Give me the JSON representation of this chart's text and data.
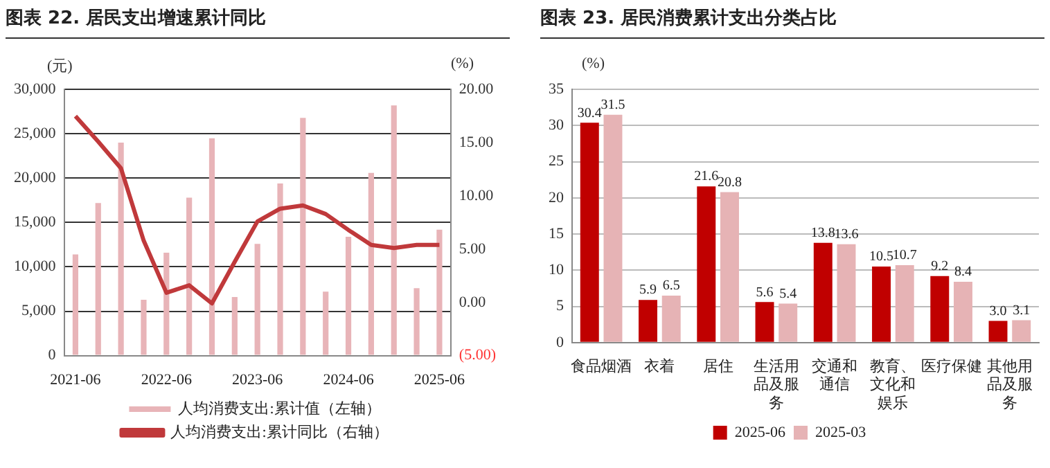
{
  "chart_data": [
    {
      "type": "bar",
      "title": "图表 22. 居民支出增速累计同比",
      "ylabel": "(元)",
      "y2label": "(%)",
      "categories": [
        "2021-06",
        null,
        null,
        null,
        "2022-06",
        null,
        null,
        null,
        "2023-06",
        null,
        null,
        null,
        "2024-06",
        null,
        null,
        null,
        "2025-06"
      ],
      "series": [
        {
          "name": "人均消费支出:累计值（左轴）",
          "color": "#e8b4b8",
          "values": [
            11400,
            17200,
            24000,
            6300,
            11600,
            17800,
            24500,
            6600,
            12600,
            19400,
            26800,
            7200,
            13400,
            20600,
            28200,
            7600,
            14200
          ]
        },
        {
          "name": "人均消费支出:累计同比（右轴）",
          "type": "line",
          "axis": "y2",
          "color": "#c0393b",
          "values": [
            17.5,
            15.1,
            12.6,
            5.8,
            0.9,
            1.6,
            -0.1,
            3.8,
            7.6,
            8.8,
            9.1,
            8.3,
            6.8,
            5.4,
            5.1,
            5.4,
            5.4
          ]
        }
      ],
      "ylim": [
        0,
        30000
      ],
      "yticks": [
        {
          "value": 0,
          "label": "0"
        },
        {
          "value": 5000,
          "label": "5,000"
        },
        {
          "value": 10000,
          "label": "10,000"
        },
        {
          "value": 15000,
          "label": "15,000"
        },
        {
          "value": 20000,
          "label": "20,000"
        },
        {
          "value": 25000,
          "label": "25,000"
        },
        {
          "value": 30000,
          "label": "30,000"
        }
      ],
      "y2lim": [
        -5,
        20
      ],
      "y2ticks": [
        {
          "value": -5,
          "label": "(5.00)"
        },
        {
          "value": 0,
          "label": "0.00"
        },
        {
          "value": 5,
          "label": "5.00"
        },
        {
          "value": 10,
          "label": "10.00"
        },
        {
          "value": 15,
          "label": "15.00"
        },
        {
          "value": 20,
          "label": "20.00"
        }
      ],
      "grid": "y",
      "legend": "bottom",
      "marker": "none",
      "line_style": "solid"
    },
    {
      "type": "bar",
      "title": "图表 23. 居民消费累计支出分类占比",
      "ylabel": "(%)",
      "categories": [
        "食品烟酒",
        "衣着",
        "居住",
        "生活用品及服务",
        "交通和通信",
        "教育、文化和娱乐",
        "医疗保健",
        "其他用品及服务"
      ],
      "series": [
        {
          "name": "2025-06",
          "color": "#c00000",
          "values": [
            30.4,
            5.9,
            21.6,
            5.6,
            13.8,
            10.5,
            9.2,
            3.0
          ],
          "value_labels": [
            "30.4",
            "5.9",
            "21.6",
            "5.6",
            "13.8",
            "10.5",
            "9.2",
            "3.0"
          ]
        },
        {
          "name": "2025-03",
          "color": "#e6b3b5",
          "values": [
            31.5,
            6.5,
            20.8,
            5.4,
            13.6,
            10.7,
            8.4,
            3.1
          ],
          "value_labels": [
            "31.5",
            "6.5",
            "20.8",
            "5.4",
            "13.6",
            "10.7",
            "8.4",
            "3.1"
          ]
        }
      ],
      "ylim": [
        0,
        35
      ],
      "yticks": [
        0,
        5,
        10,
        15,
        20,
        25,
        30,
        35
      ],
      "grid": "y",
      "legend": "bottom"
    }
  ]
}
